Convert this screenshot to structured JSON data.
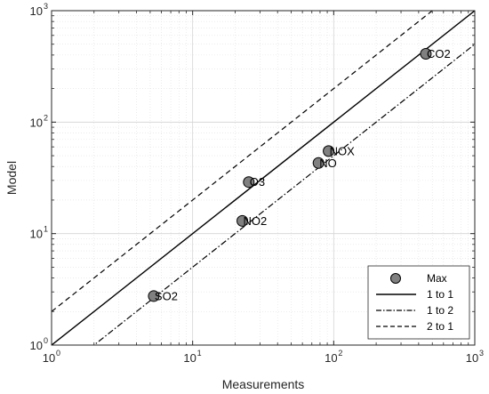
{
  "chart_data": {
    "type": "scatter",
    "xlabel": "Measurements",
    "ylabel": "Model",
    "xscale": "log",
    "yscale": "log",
    "xlim": [
      1,
      1000
    ],
    "ylim": [
      1,
      1000
    ],
    "xticks": [
      1,
      10,
      100,
      1000
    ],
    "yticks": [
      1,
      10,
      100,
      1000
    ],
    "grid": true,
    "minor_grid": true,
    "legend_position": "bottom-right",
    "colors": {
      "marker_fill": "#808080",
      "marker_edge": "#000000",
      "lines": "#000000",
      "grid": "#e0e0e0",
      "axes": "#262626"
    },
    "points": [
      {
        "label": "CO2",
        "x": 450,
        "y": 410
      },
      {
        "label": "NOX",
        "x": 92,
        "y": 55
      },
      {
        "label": "NO",
        "x": 78,
        "y": 43
      },
      {
        "label": "O3",
        "x": 25,
        "y": 29
      },
      {
        "label": "NO2",
        "x": 22.5,
        "y": 13
      },
      {
        "label": "SO2",
        "x": 5.3,
        "y": 2.75
      }
    ],
    "lines": [
      {
        "name": "1 to 1",
        "ratio": 1,
        "style": "solid"
      },
      {
        "name": "1 to 2",
        "ratio": 0.5,
        "style": "dashdot"
      },
      {
        "name": "2 to 1",
        "ratio": 2,
        "style": "dashed"
      }
    ],
    "legend": [
      "Max",
      "1 to 1",
      "1 to 2",
      "2 to 1"
    ]
  }
}
